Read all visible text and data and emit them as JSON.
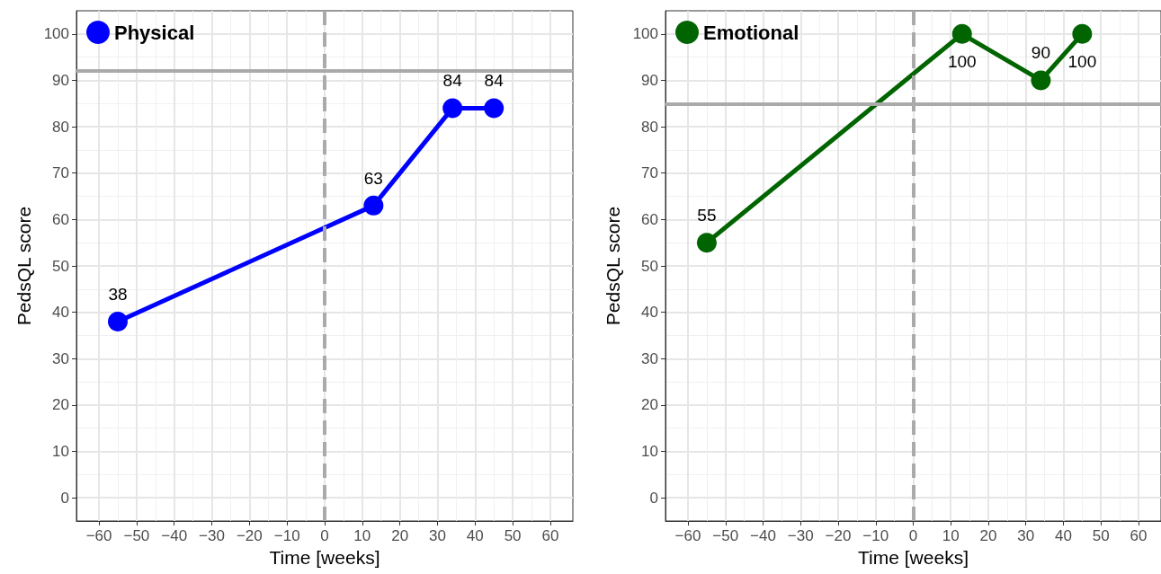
{
  "chart_data": [
    {
      "type": "line",
      "xlabel": "Time [weeks]",
      "ylabel": "PedsQL score",
      "x": [
        -55,
        13,
        34,
        45
      ],
      "series": [
        {
          "name": "Physical",
          "color": "#0000ff",
          "values": [
            38,
            63,
            84,
            84
          ]
        }
      ],
      "xlim": [
        -66,
        66
      ],
      "xticks": [
        -60,
        -50,
        -40,
        -30,
        -20,
        -10,
        0,
        10,
        20,
        30,
        40,
        50,
        60
      ],
      "ylim": [
        -5,
        105
      ],
      "yticks": [
        0,
        10,
        20,
        30,
        40,
        50,
        60,
        70,
        80,
        90,
        100
      ],
      "ref_lines": [
        {
          "axis": "x",
          "value": 0,
          "color": "#aaaaaa",
          "line_style": "dashed"
        },
        {
          "axis": "y",
          "value": 92,
          "color": "#aaaaaa",
          "line_style": "solid"
        }
      ],
      "data_labels": true,
      "grid": true,
      "legend": "top left",
      "marker": "circle",
      "line_style": "solid"
    },
    {
      "type": "line",
      "xlabel": "Time [weeks]",
      "ylabel": "PedsQL score",
      "x": [
        -55,
        13,
        34,
        45
      ],
      "series": [
        {
          "name": "Emotional",
          "color": "#006400",
          "values": [
            55,
            100,
            90,
            100
          ]
        }
      ],
      "xlim": [
        -66,
        66
      ],
      "xticks": [
        -60,
        -50,
        -40,
        -30,
        -20,
        -10,
        0,
        10,
        20,
        30,
        40,
        50,
        60
      ],
      "ylim": [
        -5,
        105
      ],
      "yticks": [
        0,
        10,
        20,
        30,
        40,
        50,
        60,
        70,
        80,
        90,
        100
      ],
      "ref_lines": [
        {
          "axis": "x",
          "value": 0,
          "color": "#aaaaaa",
          "line_style": "dashed"
        },
        {
          "axis": "y",
          "value": 85,
          "color": "#aaaaaa",
          "line_style": "solid"
        }
      ],
      "data_labels": true,
      "grid": true,
      "legend": "top left",
      "marker": "circle",
      "line_style": "solid"
    }
  ]
}
